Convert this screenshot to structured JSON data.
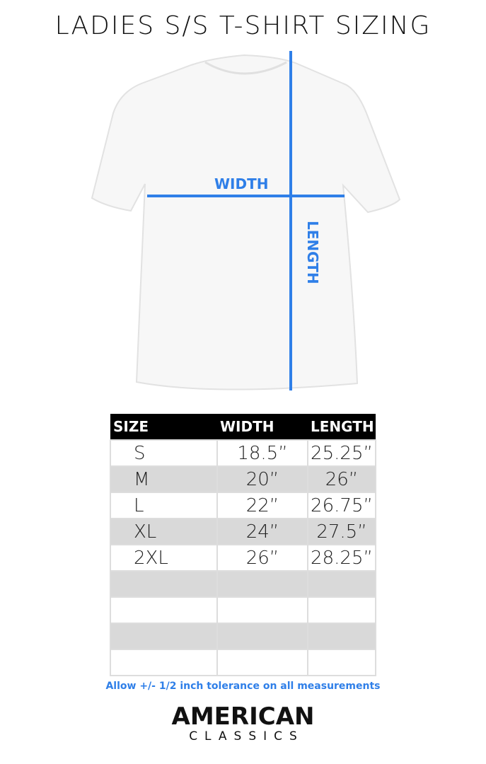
{
  "title": "LADIES S/S T-SHIRT SIZING",
  "diagram": {
    "width_label": "WIDTH",
    "length_label": "LENGTH",
    "accent_color": "#2f7fe8"
  },
  "table": {
    "headers": [
      "SIZE",
      "WIDTH",
      "LENGTH"
    ],
    "rows": [
      [
        "S",
        "18.5”",
        "25.25”"
      ],
      [
        "M",
        "20”",
        "26”"
      ],
      [
        "L",
        "22”",
        "26.75”"
      ],
      [
        "XL",
        "24”",
        "27.5”"
      ],
      [
        "2XL",
        "26”",
        "28.25”"
      ],
      [
        "",
        "",
        ""
      ],
      [
        "",
        "",
        ""
      ],
      [
        "",
        "",
        ""
      ],
      [
        "",
        "",
        ""
      ]
    ]
  },
  "note": "Allow +/- 1/2 inch tolerance on all measurements",
  "logo": {
    "line1": "AMERICAN",
    "line2": "CLASSICS"
  }
}
